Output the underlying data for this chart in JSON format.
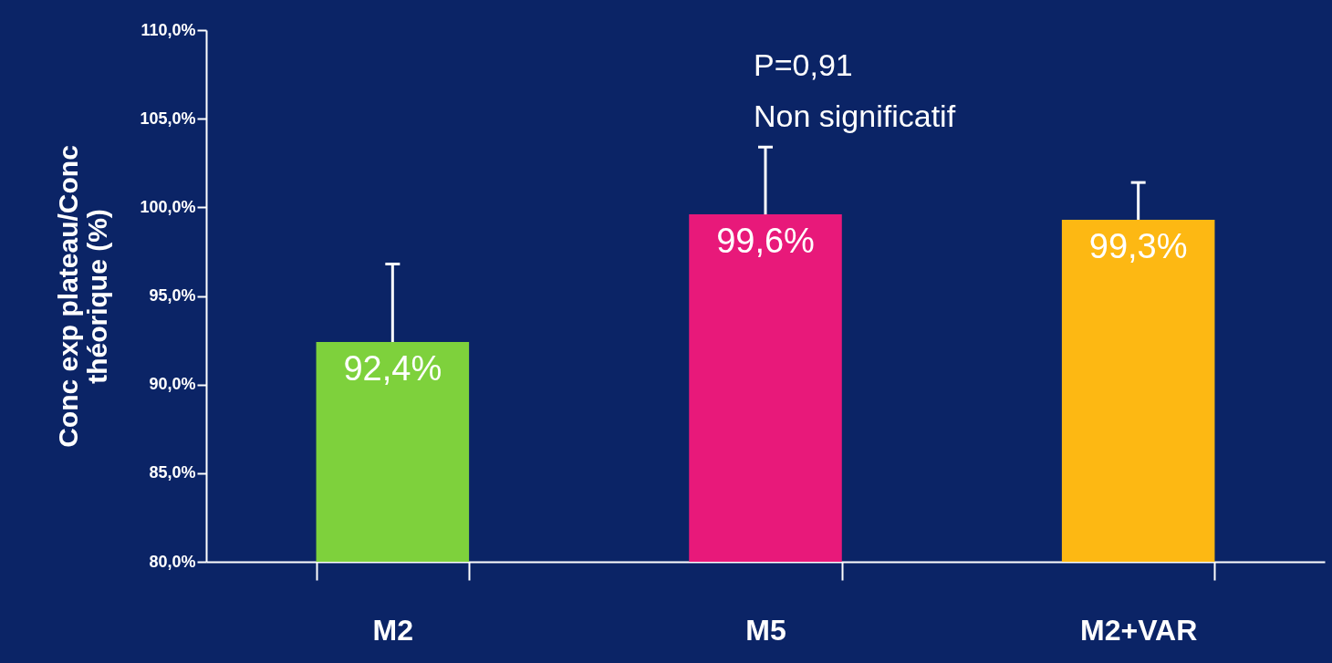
{
  "chart_data": {
    "type": "bar",
    "ylabel": "Conc exp plateau/Conc\nthéorique (%)",
    "categories": [
      "M2",
      "M5",
      "M2+VAR"
    ],
    "values": [
      92.4,
      99.6,
      99.3
    ],
    "colors": [
      "#7ed13c",
      "#e8197a",
      "#fdb813"
    ],
    "errors": [
      [
        92.4,
        96.8
      ],
      [
        99.6,
        103.4
      ],
      [
        99.3,
        101.4
      ]
    ],
    "value_labels": [
      "92,4%",
      "99,6%",
      "99,3%"
    ],
    "ylim": [
      80,
      110
    ],
    "yticks": [
      {
        "value": 80,
        "label": "80,0%"
      },
      {
        "value": 85,
        "label": "85,0%"
      },
      {
        "value": 90,
        "label": "90,0%"
      },
      {
        "value": 95,
        "label": "95,0%"
      },
      {
        "value": 100,
        "label": "100,0%"
      },
      {
        "value": 105,
        "label": "105,0%"
      },
      {
        "value": 110,
        "label": "110,0%"
      }
    ],
    "annotations": [
      "P=0,91",
      "Non significatif"
    ],
    "grid": false
  }
}
